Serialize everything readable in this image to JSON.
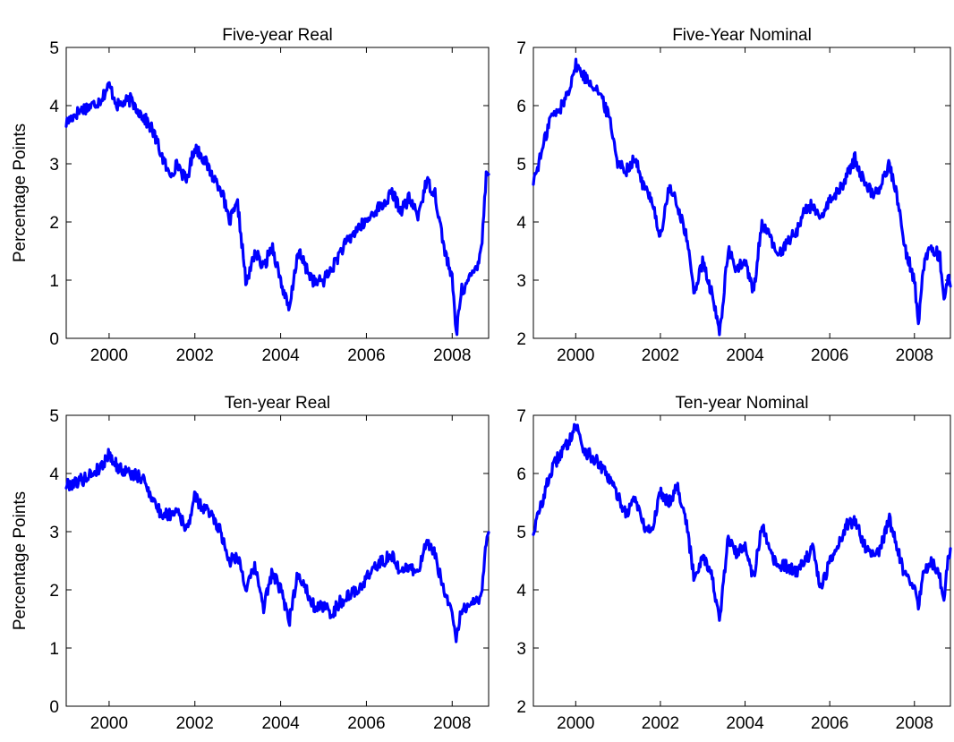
{
  "chart_data": [
    {
      "type": "line",
      "title": "Five-year Real",
      "ylabel": "Percentage Points",
      "xlim": [
        1999.0,
        2008.85
      ],
      "ylim": [
        0,
        5
      ],
      "xticks": [
        "2000",
        "2002",
        "2004",
        "2006",
        "2008"
      ],
      "yticks": [
        "0",
        "1",
        "2",
        "3",
        "4",
        "5"
      ],
      "series": [
        {
          "color": "#0000ff",
          "x": [
            1999.0,
            1999.2,
            1999.4,
            1999.6,
            1999.8,
            2000.0,
            2000.2,
            2000.5,
            2000.8,
            2001.0,
            2001.2,
            2001.4,
            2001.6,
            2001.8,
            2002.0,
            2002.2,
            2002.4,
            2002.6,
            2002.8,
            2003.0,
            2003.2,
            2003.4,
            2003.6,
            2003.8,
            2004.0,
            2004.2,
            2004.4,
            2004.6,
            2004.8,
            2005.0,
            2005.2,
            2005.4,
            2005.6,
            2005.8,
            2006.0,
            2006.2,
            2006.4,
            2006.6,
            2006.8,
            2007.0,
            2007.2,
            2007.4,
            2007.6,
            2007.8,
            2008.0,
            2008.1,
            2008.2,
            2008.4,
            2008.6,
            2008.7,
            2008.8
          ],
          "y": [
            3.7,
            3.85,
            3.95,
            4.0,
            4.1,
            4.35,
            4.0,
            4.1,
            3.8,
            3.6,
            3.2,
            2.8,
            3.0,
            2.7,
            3.3,
            3.1,
            2.8,
            2.6,
            2.0,
            2.3,
            0.9,
            1.5,
            1.2,
            1.6,
            1.0,
            0.45,
            1.5,
            1.2,
            0.95,
            1.0,
            1.2,
            1.5,
            1.7,
            1.9,
            2.0,
            2.2,
            2.3,
            2.5,
            2.2,
            2.4,
            2.1,
            2.7,
            2.5,
            1.6,
            1.0,
            0.05,
            0.8,
            1.0,
            1.3,
            1.7,
            2.9
          ]
        }
      ]
    },
    {
      "type": "line",
      "title": "Five-Year Nominal",
      "ylabel": "",
      "xlim": [
        1999.0,
        2008.85
      ],
      "ylim": [
        2,
        7
      ],
      "xticks": [
        "2000",
        "2002",
        "2004",
        "2006",
        "2008"
      ],
      "yticks": [
        "2",
        "3",
        "4",
        "5",
        "6",
        "7"
      ],
      "series": [
        {
          "color": "#0000ff",
          "x": [
            1999.0,
            1999.2,
            1999.4,
            1999.6,
            1999.8,
            2000.0,
            2000.2,
            2000.5,
            2000.8,
            2001.0,
            2001.2,
            2001.4,
            2001.6,
            2001.8,
            2002.0,
            2002.2,
            2002.4,
            2002.6,
            2002.8,
            2003.0,
            2003.2,
            2003.4,
            2003.6,
            2003.8,
            2004.0,
            2004.2,
            2004.4,
            2004.6,
            2004.8,
            2005.0,
            2005.2,
            2005.4,
            2005.6,
            2005.8,
            2006.0,
            2006.2,
            2006.4,
            2006.6,
            2006.8,
            2007.0,
            2007.2,
            2007.4,
            2007.6,
            2007.8,
            2008.0,
            2008.1,
            2008.2,
            2008.4,
            2008.6,
            2008.7,
            2008.8
          ],
          "y": [
            4.7,
            5.2,
            5.8,
            5.9,
            6.2,
            6.7,
            6.5,
            6.3,
            5.8,
            5.0,
            4.9,
            5.1,
            4.6,
            4.4,
            3.7,
            4.6,
            4.3,
            3.8,
            2.8,
            3.3,
            2.8,
            2.1,
            3.5,
            3.2,
            3.3,
            2.8,
            4.0,
            3.7,
            3.4,
            3.7,
            3.8,
            4.2,
            4.3,
            4.0,
            4.4,
            4.5,
            4.8,
            5.1,
            4.7,
            4.5,
            4.6,
            5.0,
            4.4,
            3.5,
            3.0,
            2.2,
            3.2,
            3.6,
            3.4,
            2.7,
            3.0
          ]
        }
      ]
    },
    {
      "type": "line",
      "title": "Ten-year Real",
      "ylabel": "Percentage Points",
      "xlim": [
        1999.0,
        2008.85
      ],
      "ylim": [
        0,
        5
      ],
      "xticks": [
        "2000",
        "2002",
        "2004",
        "2006",
        "2008"
      ],
      "yticks": [
        "0",
        "1",
        "2",
        "3",
        "4",
        "5"
      ],
      "series": [
        {
          "color": "#0000ff",
          "x": [
            1999.0,
            1999.2,
            1999.4,
            1999.6,
            1999.8,
            2000.0,
            2000.2,
            2000.5,
            2000.8,
            2001.0,
            2001.2,
            2001.4,
            2001.6,
            2001.8,
            2002.0,
            2002.2,
            2002.4,
            2002.6,
            2002.8,
            2003.0,
            2003.2,
            2003.4,
            2003.6,
            2003.8,
            2004.0,
            2004.2,
            2004.4,
            2004.6,
            2004.8,
            2005.0,
            2005.2,
            2005.4,
            2005.6,
            2005.8,
            2006.0,
            2006.2,
            2006.4,
            2006.6,
            2006.8,
            2007.0,
            2007.2,
            2007.4,
            2007.6,
            2007.8,
            2008.0,
            2008.1,
            2008.2,
            2008.4,
            2008.6,
            2008.7,
            2008.8
          ],
          "y": [
            3.8,
            3.85,
            3.9,
            4.0,
            4.1,
            4.35,
            4.1,
            4.0,
            3.9,
            3.6,
            3.3,
            3.3,
            3.4,
            3.0,
            3.6,
            3.4,
            3.3,
            3.0,
            2.5,
            2.6,
            2.0,
            2.4,
            1.7,
            2.3,
            2.0,
            1.45,
            2.3,
            2.0,
            1.7,
            1.7,
            1.6,
            1.8,
            1.9,
            2.0,
            2.2,
            2.4,
            2.5,
            2.6,
            2.3,
            2.4,
            2.3,
            2.8,
            2.6,
            2.0,
            1.6,
            1.1,
            1.6,
            1.8,
            1.8,
            2.0,
            2.9
          ]
        }
      ]
    },
    {
      "type": "line",
      "title": "Ten-year Nominal",
      "ylabel": "",
      "xlim": [
        1999.0,
        2008.85
      ],
      "ylim": [
        2,
        7
      ],
      "xticks": [
        "2000",
        "2002",
        "2004",
        "2006",
        "2008"
      ],
      "yticks": [
        "2",
        "3",
        "4",
        "5",
        "6",
        "7"
      ],
      "series": [
        {
          "color": "#0000ff",
          "x": [
            1999.0,
            1999.2,
            1999.4,
            1999.6,
            1999.8,
            2000.0,
            2000.2,
            2000.5,
            2000.8,
            2001.0,
            2001.2,
            2001.4,
            2001.6,
            2001.8,
            2002.0,
            2002.2,
            2002.4,
            2002.6,
            2002.8,
            2003.0,
            2003.2,
            2003.4,
            2003.6,
            2003.8,
            2004.0,
            2004.2,
            2004.4,
            2004.6,
            2004.8,
            2005.0,
            2005.2,
            2005.4,
            2005.6,
            2005.8,
            2006.0,
            2006.2,
            2006.4,
            2006.6,
            2006.8,
            2007.0,
            2007.2,
            2007.4,
            2007.6,
            2007.8,
            2008.0,
            2008.1,
            2008.2,
            2008.4,
            2008.6,
            2008.7,
            2008.8
          ],
          "y": [
            5.0,
            5.5,
            6.0,
            6.3,
            6.5,
            6.85,
            6.4,
            6.2,
            5.9,
            5.6,
            5.3,
            5.6,
            5.1,
            5.0,
            5.7,
            5.5,
            5.8,
            5.2,
            4.2,
            4.6,
            4.3,
            3.45,
            4.9,
            4.6,
            4.8,
            4.2,
            5.1,
            4.6,
            4.4,
            4.4,
            4.3,
            4.5,
            4.7,
            4.0,
            4.5,
            4.8,
            5.1,
            5.2,
            4.8,
            4.6,
            4.7,
            5.25,
            4.7,
            4.2,
            4.0,
            3.7,
            4.3,
            4.5,
            4.2,
            3.8,
            4.65
          ]
        }
      ]
    }
  ]
}
